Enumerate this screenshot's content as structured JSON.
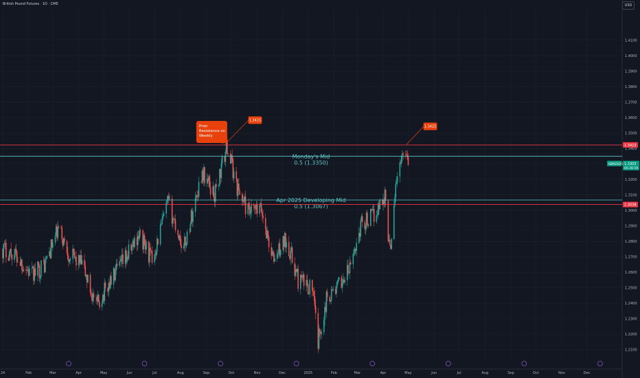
{
  "symbol_title": "British Pound Futures · 1D · CME",
  "currency_button": "USD",
  "colors": {
    "background": "#131722",
    "up": "#26a69a",
    "down": "#ef5350",
    "red_line": "#f23645",
    "mid_line": "#5ec8c8",
    "callout": "#e8410c",
    "grid": "#1f2330",
    "axis_text": "#b2b5be"
  },
  "chart_data": {
    "type": "candlestick",
    "title": "British Pound Futures · 1D · CME",
    "ylim": [
      1.205,
      1.4262
    ],
    "y_ticks": [
      1.21,
      1.22,
      1.23,
      1.24,
      1.25,
      1.26,
      1.27,
      1.28,
      1.29,
      1.3,
      1.31,
      1.32,
      1.33,
      1.34,
      1.35,
      1.36,
      1.37,
      1.38,
      1.39,
      1.4,
      1.41
    ],
    "y_tick_labels": [
      "1.2100",
      "1.2200",
      "1.2300",
      "1.2400",
      "1.2500",
      "1.2600",
      "1.2700",
      "1.2800",
      "1.2900",
      "1.3000",
      "1.3100",
      "1.3200",
      "1.3300",
      "1.3400",
      "1.3500",
      "1.3600",
      "1.3700",
      "1.3800",
      "1.3900",
      "1.4000",
      "1.4100"
    ],
    "x_range": [
      "2024-01-01",
      "2025-12-22"
    ],
    "x_ticks": [
      {
        "date": "2024-01-01",
        "label": "24"
      },
      {
        "date": "2024-02-01",
        "label": "Feb"
      },
      {
        "date": "2024-03-01",
        "label": "Mar"
      },
      {
        "date": "2024-04-01",
        "label": "Apr"
      },
      {
        "date": "2024-05-01",
        "label": "May"
      },
      {
        "date": "2024-06-01",
        "label": "Jun"
      },
      {
        "date": "2024-07-01",
        "label": "Jul"
      },
      {
        "date": "2024-08-01",
        "label": "Aug"
      },
      {
        "date": "2024-09-01",
        "label": "Sep"
      },
      {
        "date": "2024-10-01",
        "label": "Oct"
      },
      {
        "date": "2024-11-01",
        "label": "Nov"
      },
      {
        "date": "2024-12-01",
        "label": "Dec"
      },
      {
        "date": "2025-01-01",
        "label": "2025"
      },
      {
        "date": "2025-02-01",
        "label": "Feb"
      },
      {
        "date": "2025-03-01",
        "label": "Mar"
      },
      {
        "date": "2025-04-01",
        "label": "Apr"
      },
      {
        "date": "2025-05-01",
        "label": "May"
      },
      {
        "date": "2025-06-01",
        "label": "Jun"
      },
      {
        "date": "2025-07-01",
        "label": "Jul"
      },
      {
        "date": "2025-08-01",
        "label": "Aug"
      },
      {
        "date": "2025-09-01",
        "label": "Sep"
      },
      {
        "date": "2025-10-01",
        "label": "Oct"
      },
      {
        "date": "2025-11-01",
        "label": "Nov"
      },
      {
        "date": "2025-12-01",
        "label": "Dec"
      }
    ],
    "event_markers": [
      "2024-03-20",
      "2024-06-19",
      "2024-09-18",
      "2024-12-18",
      "2025-03-19",
      "2025-06-18",
      "2025-09-17",
      "2025-12-17"
    ],
    "price_path": [
      {
        "date": "2024-01-01",
        "close": 1.275
      },
      {
        "date": "2024-01-15",
        "close": 1.272
      },
      {
        "date": "2024-02-05",
        "close": 1.258
      },
      {
        "date": "2024-02-20",
        "close": 1.265
      },
      {
        "date": "2024-03-08",
        "close": 1.288
      },
      {
        "date": "2024-03-20",
        "close": 1.272
      },
      {
        "date": "2024-04-05",
        "close": 1.265
      },
      {
        "date": "2024-04-22",
        "close": 1.238
      },
      {
        "date": "2024-05-10",
        "close": 1.255
      },
      {
        "date": "2024-05-31",
        "close": 1.272
      },
      {
        "date": "2024-06-12",
        "close": 1.285
      },
      {
        "date": "2024-06-28",
        "close": 1.268
      },
      {
        "date": "2024-07-17",
        "close": 1.305
      },
      {
        "date": "2024-08-05",
        "close": 1.275
      },
      {
        "date": "2024-08-27",
        "close": 1.325
      },
      {
        "date": "2024-09-11",
        "close": 1.31
      },
      {
        "date": "2024-09-26",
        "close": 1.342
      },
      {
        "date": "2024-10-08",
        "close": 1.315
      },
      {
        "date": "2024-10-22",
        "close": 1.298
      },
      {
        "date": "2024-11-06",
        "close": 1.3
      },
      {
        "date": "2024-11-20",
        "close": 1.268
      },
      {
        "date": "2024-12-06",
        "close": 1.282
      },
      {
        "date": "2024-12-20",
        "close": 1.255
      },
      {
        "date": "2025-01-06",
        "close": 1.25
      },
      {
        "date": "2025-01-13",
        "close": 1.215
      },
      {
        "date": "2025-01-24",
        "close": 1.245
      },
      {
        "date": "2025-02-05",
        "close": 1.25
      },
      {
        "date": "2025-02-20",
        "close": 1.262
      },
      {
        "date": "2025-03-06",
        "close": 1.292
      },
      {
        "date": "2025-03-20",
        "close": 1.296
      },
      {
        "date": "2025-04-03",
        "close": 1.31
      },
      {
        "date": "2025-04-09",
        "close": 1.273
      },
      {
        "date": "2025-04-16",
        "close": 1.318
      },
      {
        "date": "2025-04-23",
        "close": 1.332
      },
      {
        "date": "2025-04-28",
        "close": 1.341
      },
      {
        "date": "2025-05-02",
        "close": 1.3303
      }
    ],
    "horizontal_lines": [
      {
        "price": 1.3423,
        "style": "red",
        "label": "1.3423"
      },
      {
        "price": 1.335,
        "style": "mid",
        "text": "Monday's Mid",
        "subtext": "0.5 (1.3350)"
      },
      {
        "price": 1.3067,
        "style": "mid",
        "text": "Apr 2025 Developing Mid",
        "subtext": "0.5 (1.3067)"
      },
      {
        "price": 1.3038,
        "style": "red",
        "label": "1.3038"
      }
    ],
    "annotations": [
      {
        "type": "callout",
        "text": "Prior Resistance on Weekly",
        "date": "2024-08-20",
        "price": 1.356
      },
      {
        "type": "price_label",
        "text": "1.3415",
        "date": "2024-10-22",
        "price": 1.3585,
        "anchor_date": "2024-09-22",
        "anchor_price": 1.342
      },
      {
        "type": "price_label",
        "text": "1.3425",
        "date": "2025-05-20",
        "price": 1.3545,
        "anchor_date": "2025-04-29",
        "anchor_price": 1.3427
      }
    ],
    "last_price": {
      "symbol": "6BM2025",
      "price": 1.3303,
      "label": "1.3303",
      "countdown": "05:36:59"
    }
  }
}
